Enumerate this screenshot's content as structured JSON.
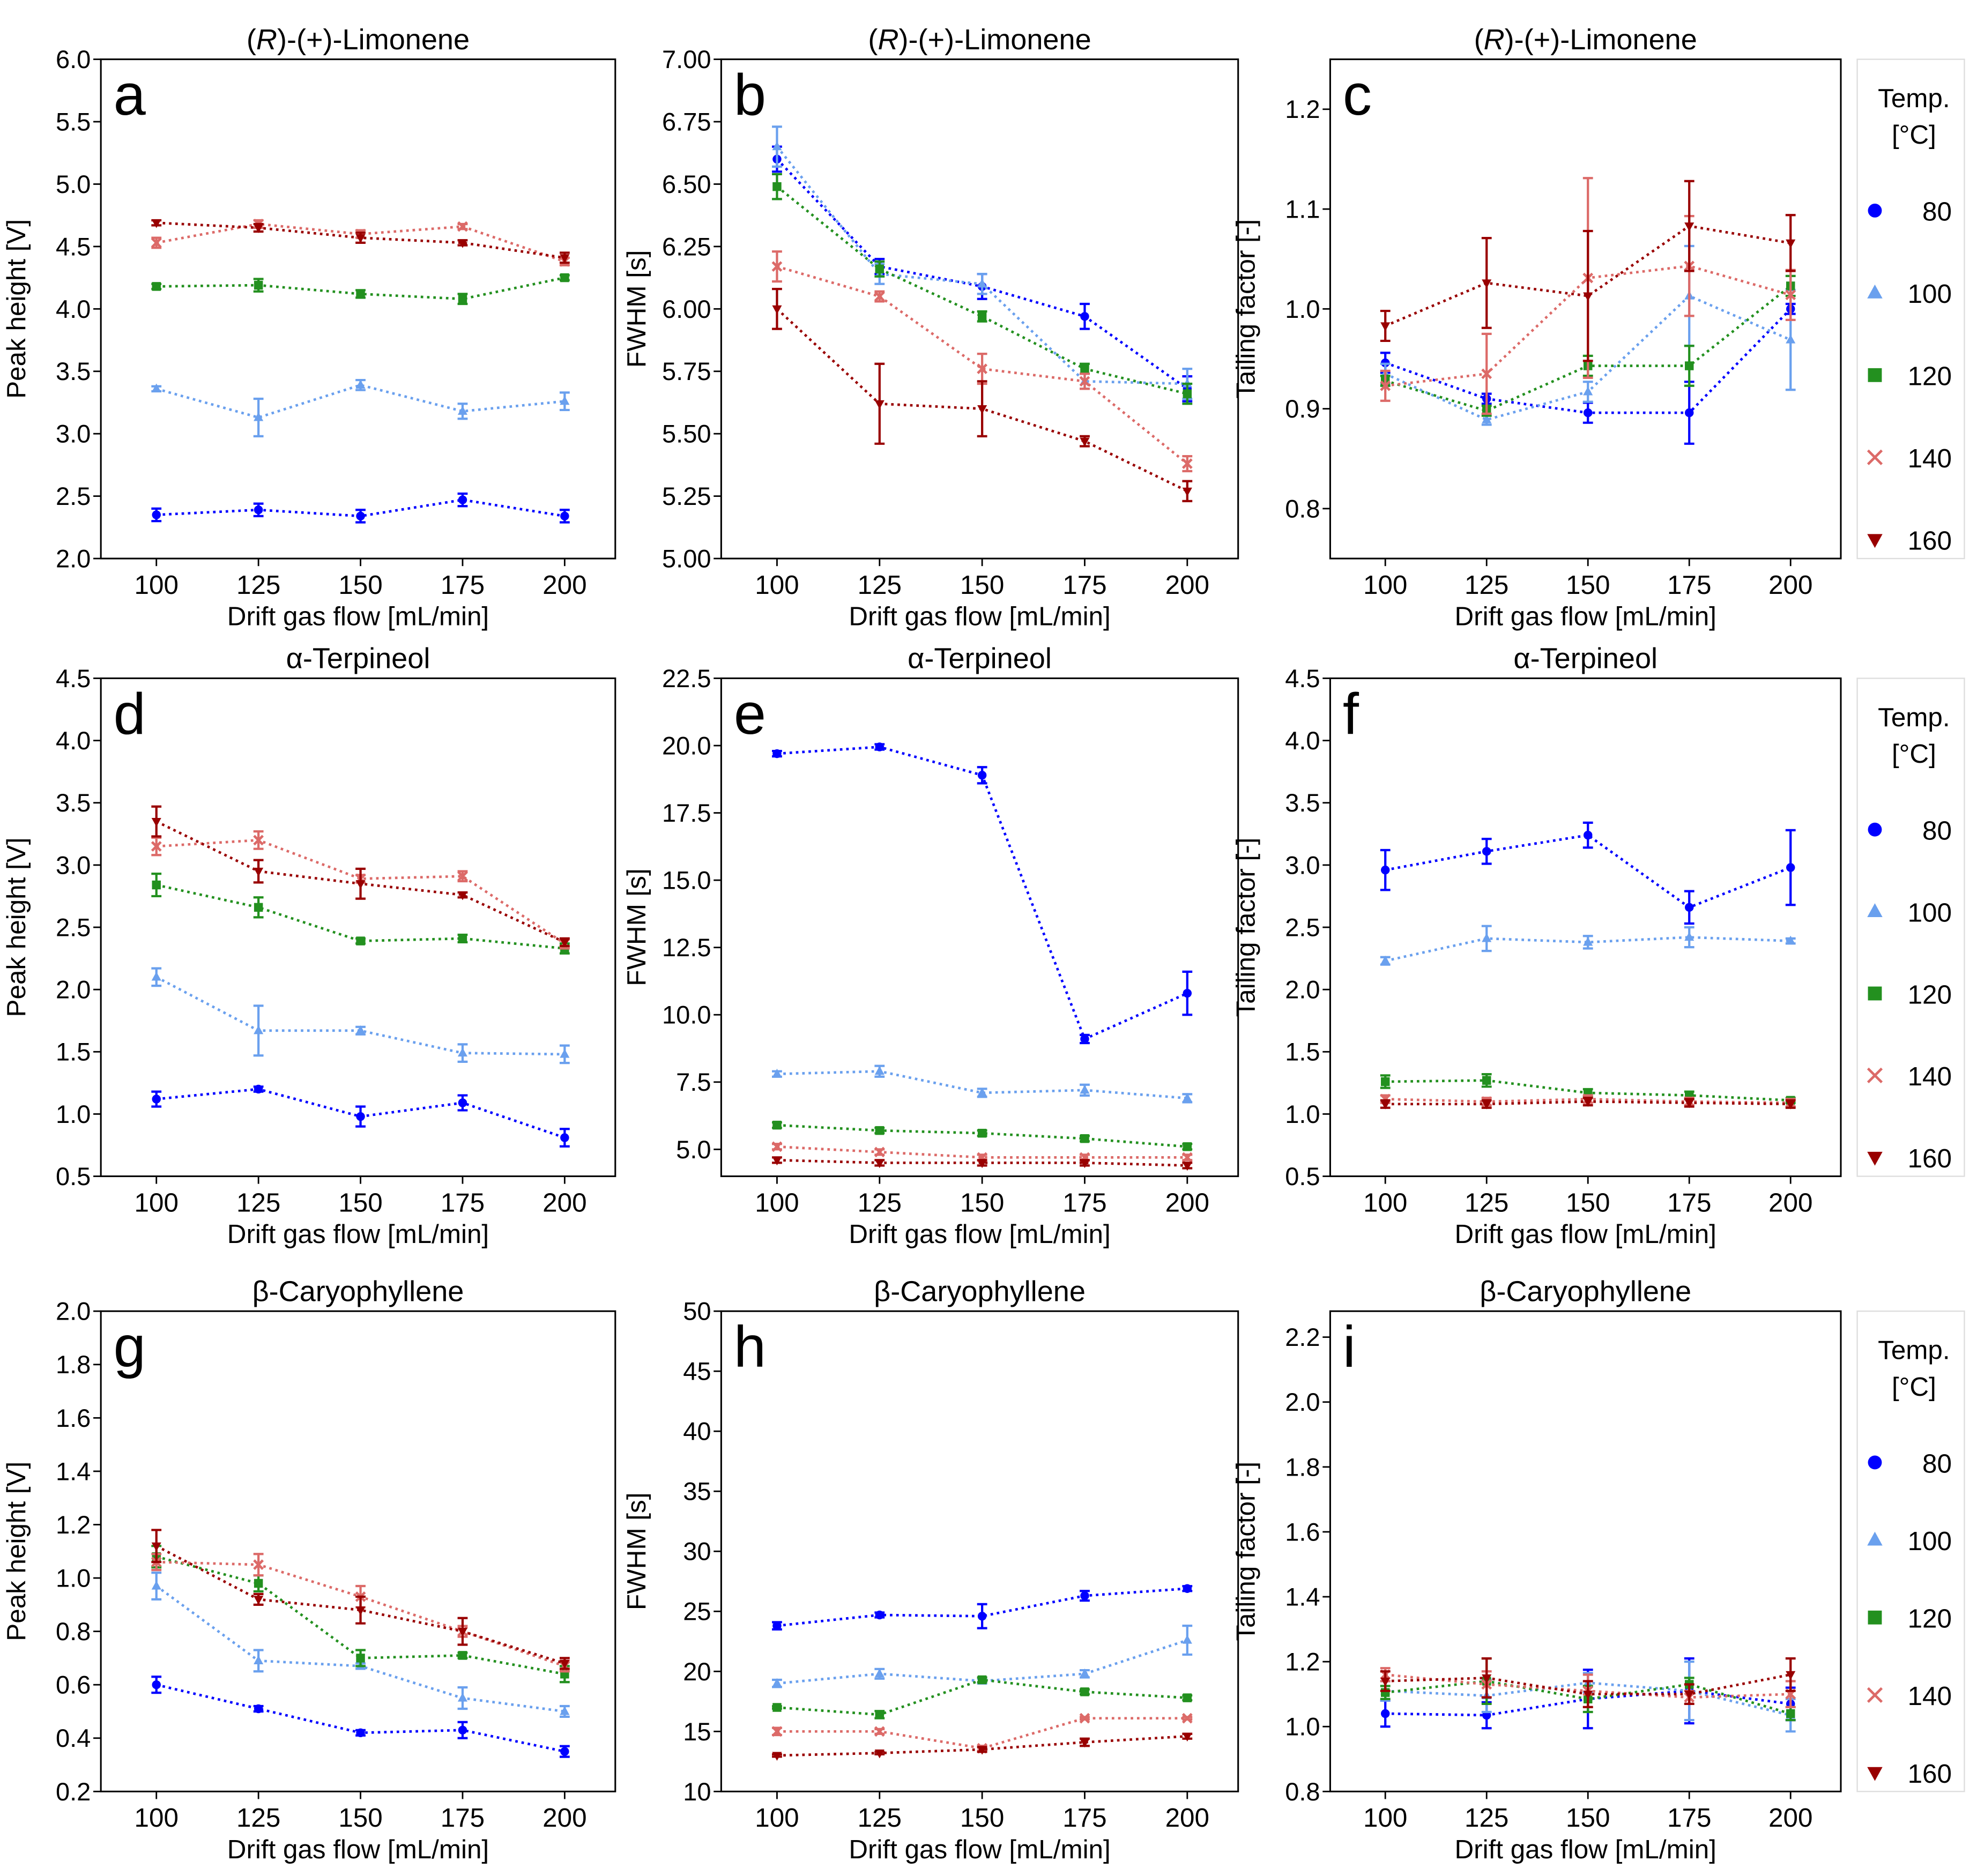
{
  "chart_data": [
    {
      "type": "line",
      "panel": "a",
      "title": "(R)-(+)-Limonene",
      "ylabel": "Peak height [V]",
      "xlabel": "Drift gas flow [mL/min]",
      "x": [
        100,
        125,
        150,
        175,
        200
      ],
      "xticks": [
        "100",
        "125",
        "150",
        "175",
        "200"
      ],
      "xlim": [
        86.4,
        212.4
      ],
      "ylim": [
        2.0,
        6.0
      ],
      "yticks": [
        "2.0",
        "2.5",
        "3.0",
        "3.5",
        "4.0",
        "4.5",
        "5.0",
        "5.5",
        "6.0"
      ],
      "series": [
        {
          "name": "80",
          "values": [
            2.35,
            2.39,
            2.34,
            2.47,
            2.34
          ],
          "errors": [
            0.05,
            0.05,
            0.05,
            0.05,
            0.05
          ]
        },
        {
          "name": "100",
          "values": [
            3.36,
            3.13,
            3.39,
            3.18,
            3.26
          ],
          "errors": [
            0.02,
            0.15,
            0.04,
            0.06,
            0.07
          ]
        },
        {
          "name": "120",
          "values": [
            4.18,
            4.19,
            4.12,
            4.08,
            4.25
          ],
          "errors": [
            0.02,
            0.05,
            0.03,
            0.04,
            0.02
          ]
        },
        {
          "name": "140",
          "values": [
            4.53,
            4.68,
            4.6,
            4.66,
            4.38
          ],
          "errors": [
            0.04,
            0.03,
            0.03,
            0.02,
            0.03
          ]
        },
        {
          "name": "160",
          "values": [
            4.69,
            4.65,
            4.57,
            4.53,
            4.41
          ],
          "errors": [
            0.02,
            0.03,
            0.04,
            0.02,
            0.04
          ]
        }
      ]
    },
    {
      "type": "line",
      "panel": "b",
      "title": "(R)-(+)-Limonene",
      "ylabel": "FWHM [s]",
      "xlabel": "Drift gas flow [mL/min]",
      "x": [
        100,
        125,
        150,
        175,
        200
      ],
      "xticks": [
        "100",
        "125",
        "150",
        "175",
        "200"
      ],
      "xlim": [
        86.4,
        212.4
      ],
      "ylim": [
        5.0,
        7.0
      ],
      "yticks": [
        "5.00",
        "5.25",
        "5.50",
        "5.75",
        "6.00",
        "6.25",
        "6.50",
        "6.75",
        "7.00"
      ],
      "series": [
        {
          "name": "80",
          "values": [
            6.6,
            6.17,
            6.09,
            5.97,
            5.68
          ],
          "errors": [
            0.05,
            0.03,
            0.05,
            0.05,
            0.05
          ]
        },
        {
          "name": "100",
          "values": [
            6.65,
            6.14,
            6.1,
            5.71,
            5.7
          ],
          "errors": [
            0.08,
            0.04,
            0.04,
            0.03,
            0.06
          ]
        },
        {
          "name": "120",
          "values": [
            6.49,
            6.16,
            5.97,
            5.76,
            5.66
          ],
          "errors": [
            0.05,
            0.03,
            0.02,
            0.02,
            0.04
          ]
        },
        {
          "name": "140",
          "values": [
            6.17,
            6.05,
            5.76,
            5.71,
            5.38
          ],
          "errors": [
            0.06,
            0.02,
            0.06,
            0.03,
            0.03
          ]
        },
        {
          "name": "160",
          "values": [
            6.0,
            5.62,
            5.6,
            5.47,
            5.27
          ],
          "errors": [
            0.08,
            0.16,
            0.11,
            0.02,
            0.04
          ]
        }
      ]
    },
    {
      "type": "line",
      "panel": "c",
      "title": "(R)-(+)-Limonene",
      "ylabel": "Tailing factor [-]",
      "xlabel": "Drift gas flow [mL/min]",
      "x": [
        100,
        125,
        150,
        175,
        200
      ],
      "xticks": [
        "100",
        "125",
        "150",
        "175",
        "200"
      ],
      "xlim": [
        86.4,
        212.4
      ],
      "ylim": [
        0.75,
        1.25
      ],
      "yticks": [
        "0.8",
        "0.9",
        "1.0",
        "1.1",
        "1.2"
      ],
      "series": [
        {
          "name": "80",
          "values": [
            0.946,
            0.91,
            0.896,
            0.896,
            1.0
          ],
          "errors": [
            0.01,
            0.005,
            0.01,
            0.031,
            0.005
          ]
        },
        {
          "name": "100",
          "values": [
            0.935,
            0.889,
            0.917,
            1.013,
            0.969
          ],
          "errors": [
            0.01,
            0.005,
            0.01,
            0.05,
            0.05
          ]
        },
        {
          "name": "120",
          "values": [
            0.928,
            0.898,
            0.943,
            0.943,
            1.023
          ],
          "errors": [
            0.005,
            0.005,
            0.01,
            0.02,
            0.01
          ]
        },
        {
          "name": "140",
          "values": [
            0.923,
            0.935,
            1.031,
            1.043,
            1.014
          ],
          "errors": [
            0.015,
            0.04,
            0.1,
            0.05,
            0.025
          ]
        },
        {
          "name": "160",
          "values": [
            0.983,
            1.026,
            1.013,
            1.083,
            1.066
          ],
          "errors": [
            0.015,
            0.045,
            0.065,
            0.045,
            0.028
          ]
        }
      ]
    },
    {
      "type": "line",
      "panel": "d",
      "title": "α-Terpineol",
      "ylabel": "Peak height [V]",
      "xlabel": "Drift gas flow [mL/min]",
      "x": [
        100,
        125,
        150,
        175,
        200
      ],
      "xticks": [
        "100",
        "125",
        "150",
        "175",
        "200"
      ],
      "xlim": [
        86.4,
        212.4
      ],
      "ylim": [
        0.5,
        4.5
      ],
      "yticks": [
        "0.5",
        "1.0",
        "1.5",
        "2.0",
        "2.5",
        "3.0",
        "3.5",
        "4.0",
        "4.5"
      ],
      "series": [
        {
          "name": "80",
          "values": [
            1.12,
            1.2,
            0.98,
            1.09,
            0.81
          ],
          "errors": [
            0.06,
            0.02,
            0.08,
            0.06,
            0.07
          ]
        },
        {
          "name": "100",
          "values": [
            2.1,
            1.67,
            1.67,
            1.49,
            1.48
          ],
          "errors": [
            0.07,
            0.2,
            0.03,
            0.07,
            0.07
          ]
        },
        {
          "name": "120",
          "values": [
            2.84,
            2.66,
            2.39,
            2.41,
            2.33
          ],
          "errors": [
            0.09,
            0.08,
            0.02,
            0.03,
            0.04
          ]
        },
        {
          "name": "140",
          "values": [
            3.15,
            3.2,
            2.89,
            2.91,
            2.37
          ],
          "errors": [
            0.07,
            0.07,
            0.03,
            0.04,
            0.04
          ]
        },
        {
          "name": "160",
          "values": [
            3.35,
            2.95,
            2.85,
            2.76,
            2.38
          ],
          "errors": [
            0.12,
            0.09,
            0.12,
            0.02,
            0.03
          ]
        }
      ]
    },
    {
      "type": "line",
      "panel": "e",
      "title": "α-Terpineol",
      "ylabel": "FWHM [s]",
      "xlabel": "Drift gas flow [mL/min]",
      "x": [
        100,
        125,
        150,
        175,
        200
      ],
      "xticks": [
        "100",
        "125",
        "150",
        "175",
        "200"
      ],
      "xlim": [
        86.4,
        212.4
      ],
      "ylim": [
        4.0,
        22.5
      ],
      "yticks": [
        "5.0",
        "7.5",
        "10.0",
        "12.5",
        "15.0",
        "17.5",
        "20.0",
        "22.5"
      ],
      "series": [
        {
          "name": "80",
          "values": [
            19.7,
            19.95,
            18.9,
            9.1,
            10.8
          ],
          "errors": [
            0.1,
            0.1,
            0.3,
            0.15,
            0.8
          ]
        },
        {
          "name": "100",
          "values": [
            7.8,
            7.9,
            7.1,
            7.2,
            6.9
          ],
          "errors": [
            0.1,
            0.2,
            0.15,
            0.2,
            0.15
          ]
        },
        {
          "name": "120",
          "values": [
            5.9,
            5.7,
            5.6,
            5.4,
            5.1
          ],
          "errors": [
            0.1,
            0.1,
            0.1,
            0.1,
            0.1
          ]
        },
        {
          "name": "140",
          "values": [
            5.1,
            4.9,
            4.7,
            4.7,
            4.7
          ],
          "errors": [
            0.1,
            0.1,
            0.1,
            0.1,
            0.1
          ]
        },
        {
          "name": "160",
          "values": [
            4.6,
            4.5,
            4.5,
            4.5,
            4.4
          ],
          "errors": [
            0.1,
            0.1,
            0.1,
            0.1,
            0.1
          ]
        }
      ]
    },
    {
      "type": "line",
      "panel": "f",
      "title": "α-Terpineol",
      "ylabel": "Tailing factor [-]",
      "xlabel": "Drift gas flow [mL/min]",
      "x": [
        100,
        125,
        150,
        175,
        200
      ],
      "xticks": [
        "100",
        "125",
        "150",
        "175",
        "200"
      ],
      "xlim": [
        86.4,
        212.4
      ],
      "ylim": [
        0.5,
        4.5
      ],
      "yticks": [
        "0.5",
        "1.0",
        "1.5",
        "2.0",
        "2.5",
        "3.0",
        "3.5",
        "4.0",
        "4.5"
      ],
      "series": [
        {
          "name": "80",
          "values": [
            2.96,
            3.11,
            3.24,
            2.66,
            2.98
          ],
          "errors": [
            0.16,
            0.1,
            0.1,
            0.13,
            0.3
          ]
        },
        {
          "name": "100",
          "values": [
            2.23,
            2.41,
            2.38,
            2.42,
            2.39
          ],
          "errors": [
            0.03,
            0.1,
            0.05,
            0.08,
            0.02
          ]
        },
        {
          "name": "120",
          "values": [
            1.26,
            1.27,
            1.17,
            1.15,
            1.11
          ],
          "errors": [
            0.05,
            0.05,
            0.03,
            0.03,
            0.02
          ]
        },
        {
          "name": "140",
          "values": [
            1.12,
            1.1,
            1.12,
            1.1,
            1.09
          ],
          "errors": [
            0.03,
            0.03,
            0.03,
            0.03,
            0.03
          ]
        },
        {
          "name": "160",
          "values": [
            1.08,
            1.08,
            1.1,
            1.09,
            1.08
          ],
          "errors": [
            0.03,
            0.03,
            0.03,
            0.03,
            0.03
          ]
        }
      ]
    },
    {
      "type": "line",
      "panel": "g",
      "title": "β-Caryophyllene",
      "ylabel": "Peak height [V]",
      "xlabel": "Drift gas flow [mL/min]",
      "x": [
        100,
        125,
        150,
        175,
        200
      ],
      "xticks": [
        "100",
        "125",
        "150",
        "175",
        "200"
      ],
      "xlim": [
        86.4,
        212.4
      ],
      "ylim": [
        0.2,
        2.0
      ],
      "yticks": [
        "0.2",
        "0.4",
        "0.6",
        "0.8",
        "1.0",
        "1.2",
        "1.4",
        "1.6",
        "1.8",
        "2.0"
      ],
      "series": [
        {
          "name": "80",
          "values": [
            0.6,
            0.51,
            0.42,
            0.43,
            0.35
          ],
          "errors": [
            0.03,
            0.01,
            0.01,
            0.03,
            0.02
          ]
        },
        {
          "name": "100",
          "values": [
            0.97,
            0.69,
            0.67,
            0.55,
            0.5
          ],
          "errors": [
            0.05,
            0.04,
            0.01,
            0.04,
            0.02
          ]
        },
        {
          "name": "120",
          "values": [
            1.08,
            0.98,
            0.7,
            0.71,
            0.64
          ],
          "errors": [
            0.04,
            0.03,
            0.03,
            0.01,
            0.03
          ]
        },
        {
          "name": "140",
          "values": [
            1.06,
            1.05,
            0.93,
            0.8,
            0.67
          ],
          "errors": [
            0.03,
            0.04,
            0.04,
            0.02,
            0.02
          ]
        },
        {
          "name": "160",
          "values": [
            1.12,
            0.92,
            0.88,
            0.8,
            0.68
          ],
          "errors": [
            0.06,
            0.02,
            0.05,
            0.05,
            0.02
          ]
        }
      ]
    },
    {
      "type": "line",
      "panel": "h",
      "title": "β-Caryophyllene",
      "ylabel": "FWHM [s]",
      "xlabel": "Drift gas flow [mL/min]",
      "x": [
        100,
        125,
        150,
        175,
        200
      ],
      "xticks": [
        "100",
        "125",
        "150",
        "175",
        "200"
      ],
      "xlim": [
        86.4,
        212.4
      ],
      "ylim": [
        10,
        50
      ],
      "yticks": [
        "10",
        "15",
        "20",
        "25",
        "30",
        "35",
        "40",
        "45",
        "50"
      ],
      "series": [
        {
          "name": "80",
          "values": [
            23.8,
            24.7,
            24.6,
            26.3,
            26.9
          ],
          "errors": [
            0.3,
            0.2,
            1.0,
            0.4,
            0.2
          ]
        },
        {
          "name": "100",
          "values": [
            19.0,
            19.8,
            19.2,
            19.8,
            22.6
          ],
          "errors": [
            0.3,
            0.4,
            0.2,
            0.3,
            1.2
          ]
        },
        {
          "name": "120",
          "values": [
            17.0,
            16.4,
            19.3,
            18.3,
            17.8
          ],
          "errors": [
            0.1,
            0.3,
            0.2,
            0.2,
            0.2
          ]
        },
        {
          "name": "140",
          "values": [
            15.0,
            15.0,
            13.6,
            16.1,
            16.1
          ],
          "errors": [
            0.3,
            0.2,
            0.2,
            0.1,
            0.1
          ]
        },
        {
          "name": "160",
          "values": [
            13.0,
            13.2,
            13.5,
            14.1,
            14.6
          ],
          "errors": [
            0.1,
            0.1,
            0.2,
            0.3,
            0.2
          ]
        }
      ]
    },
    {
      "type": "line",
      "panel": "i",
      "title": "β-Caryophyllene",
      "ylabel": "Tailing factor [-]",
      "xlabel": "Drift gas flow [mL/min]",
      "x": [
        100,
        125,
        150,
        175,
        200
      ],
      "xticks": [
        "100",
        "125",
        "150",
        "175",
        "200"
      ],
      "xlim": [
        86.4,
        212.4
      ],
      "ylim": [
        0.8,
        2.28
      ],
      "yticks": [
        "0.8",
        "1.0",
        "1.2",
        "1.4",
        "1.6",
        "1.8",
        "2.0",
        "2.2"
      ],
      "series": [
        {
          "name": "80",
          "values": [
            1.04,
            1.035,
            1.085,
            1.11,
            1.07
          ],
          "errors": [
            0.04,
            0.04,
            0.09,
            0.1,
            0.05
          ]
        },
        {
          "name": "100",
          "values": [
            1.11,
            1.095,
            1.135,
            1.11,
            1.035
          ],
          "errors": [
            0.03,
            0.05,
            0.03,
            0.09,
            0.05
          ]
        },
        {
          "name": "120",
          "values": [
            1.105,
            1.14,
            1.085,
            1.13,
            1.04
          ],
          "errors": [
            0.02,
            0.07,
            0.04,
            0.02,
            0.02
          ]
        },
        {
          "name": "140",
          "values": [
            1.16,
            1.13,
            1.11,
            1.09,
            1.1
          ],
          "errors": [
            0.02,
            0.04,
            0.05,
            0.02,
            0.04
          ]
        },
        {
          "name": "160",
          "values": [
            1.14,
            1.15,
            1.1,
            1.1,
            1.16
          ],
          "errors": [
            0.03,
            0.06,
            0.04,
            0.03,
            0.05
          ]
        }
      ]
    }
  ],
  "legend": {
    "title_line1": "Temp.",
    "title_line2": "[°C]",
    "items": [
      {
        "label": "80",
        "marker": "circle",
        "color": "#0000ff"
      },
      {
        "label": "100",
        "marker": "triangle-up",
        "color": "#6aa0ee"
      },
      {
        "label": "120",
        "marker": "square",
        "color": "#23901f"
      },
      {
        "label": "140",
        "marker": "x",
        "color": "#dc6a68"
      },
      {
        "label": "160",
        "marker": "triangle-down",
        "color": "#990000"
      }
    ]
  }
}
